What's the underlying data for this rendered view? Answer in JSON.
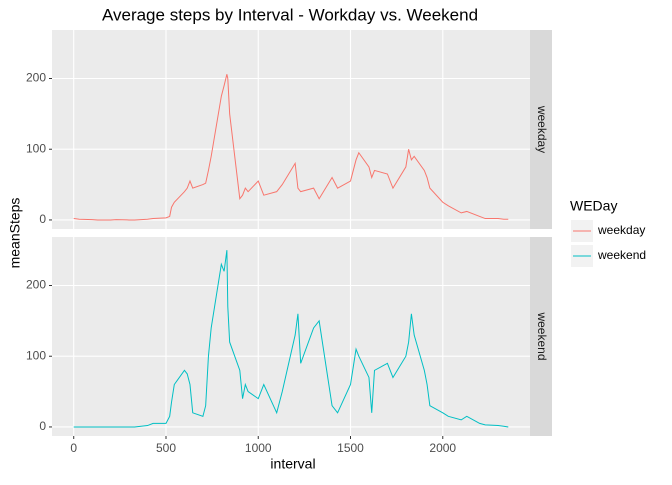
{
  "chart_data": {
    "type": "line",
    "title": "Average steps by Interval - Workday vs. Weekend",
    "x_label": "interval",
    "y_label": "meanSteps",
    "legend_title": "WEDay",
    "grid": true,
    "facet": true,
    "x": [
      0,
      30,
      100,
      130,
      200,
      230,
      300,
      330,
      400,
      430,
      500,
      520,
      530,
      545,
      600,
      615,
      630,
      645,
      700,
      715,
      730,
      745,
      800,
      815,
      830,
      835,
      845,
      900,
      915,
      930,
      945,
      1000,
      1030,
      1100,
      1130,
      1200,
      1215,
      1230,
      1300,
      1330,
      1400,
      1430,
      1500,
      1530,
      1545,
      1600,
      1615,
      1630,
      1700,
      1730,
      1800,
      1815,
      1830,
      1845,
      1900,
      1915,
      1930,
      2000,
      2030,
      2100,
      2130,
      2200,
      2230,
      2300,
      2330,
      2355
    ],
    "series": [
      {
        "name": "weekday",
        "color": "#F8766D",
        "values": [
          2,
          1,
          0.5,
          0,
          0,
          0.5,
          0,
          0,
          1,
          2,
          3,
          5,
          18,
          25,
          40,
          45,
          55,
          45,
          50,
          52,
          70,
          90,
          175,
          190,
          206,
          200,
          150,
          30,
          35,
          45,
          40,
          55,
          35,
          40,
          50,
          80,
          45,
          40,
          45,
          30,
          60,
          45,
          55,
          85,
          95,
          75,
          60,
          70,
          65,
          45,
          75,
          100,
          85,
          90,
          70,
          60,
          45,
          25,
          20,
          10,
          12,
          5,
          2,
          2,
          1,
          1
        ]
      },
      {
        "name": "weekend",
        "color": "#00BFC4",
        "values": [
          0,
          0,
          0,
          0,
          0,
          0,
          0,
          0,
          2,
          5,
          5,
          15,
          35,
          60,
          80,
          75,
          60,
          20,
          15,
          30,
          100,
          140,
          230,
          220,
          250,
          170,
          120,
          80,
          40,
          60,
          50,
          40,
          60,
          20,
          50,
          130,
          160,
          90,
          140,
          150,
          30,
          20,
          60,
          110,
          100,
          70,
          20,
          80,
          90,
          70,
          100,
          120,
          160,
          130,
          80,
          60,
          30,
          20,
          15,
          10,
          15,
          5,
          3,
          2,
          1,
          0
        ]
      }
    ],
    "xlim": [
      -117.75,
      2472.75
    ],
    "xticks": [
      0,
      500,
      1000,
      1500,
      2000
    ],
    "ylim": [
      -12.8,
      268.6
    ],
    "yticks": [
      0,
      100,
      200
    ]
  }
}
